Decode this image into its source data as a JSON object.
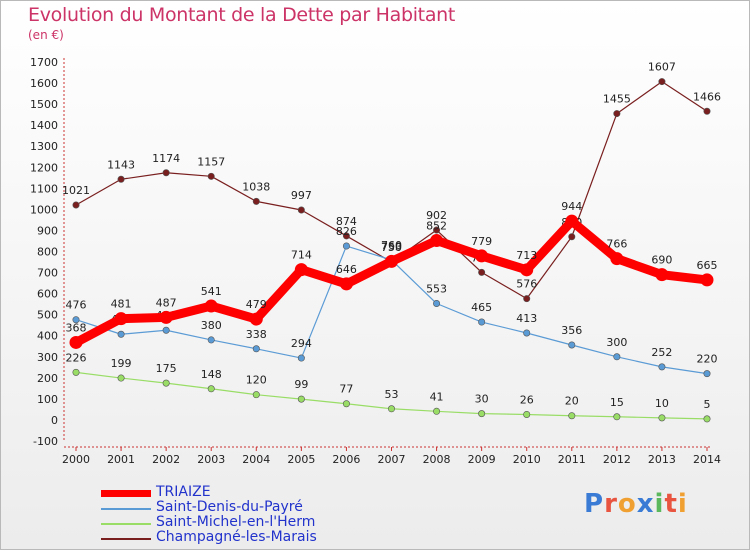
{
  "title": "Evolution du Montant de la Dette par Habitant",
  "subtitle": "(en €)",
  "logo_text": "Proxiti",
  "chart_data": {
    "type": "line",
    "x": [
      "2000",
      "2001",
      "2002",
      "2003",
      "2004",
      "2005",
      "2006",
      "2007",
      "2008",
      "2009",
      "2010",
      "2011",
      "2012",
      "2013",
      "2014"
    ],
    "ylim": [
      -100,
      1700
    ],
    "yticks": [
      -100,
      0,
      100,
      200,
      300,
      400,
      500,
      600,
      700,
      800,
      900,
      1000,
      1100,
      1200,
      1300,
      1400,
      1500,
      1600,
      1700
    ],
    "grid": false,
    "legend_position": "bottom-left",
    "series": [
      {
        "name": "Champagné-les-Marais",
        "color": "#7a1f1f",
        "values": [
          1021,
          1143,
          1174,
          1157,
          1038,
          997,
          874,
          750,
          902,
          701,
          576,
          870,
          1455,
          1607,
          1466
        ]
      },
      {
        "name": "Saint-Michel-en-l'Herm",
        "color": "#99dd66",
        "values": [
          226,
          199,
          175,
          148,
          120,
          99,
          77,
          53,
          41,
          30,
          26,
          20,
          15,
          10,
          5
        ]
      },
      {
        "name": "Saint-Denis-du-Payré",
        "color": "#5b9bd5",
        "values": [
          476,
          407,
          426,
          380,
          338,
          294,
          826,
          760,
          553,
          465,
          413,
          356,
          300,
          252,
          220
        ]
      },
      {
        "name": "TRIAIZE",
        "color": "#ff0000",
        "values": [
          368,
          481,
          487,
          541,
          479,
          714,
          646,
          753,
          852,
          779,
          713,
          944,
          766,
          690,
          665
        ]
      }
    ]
  }
}
